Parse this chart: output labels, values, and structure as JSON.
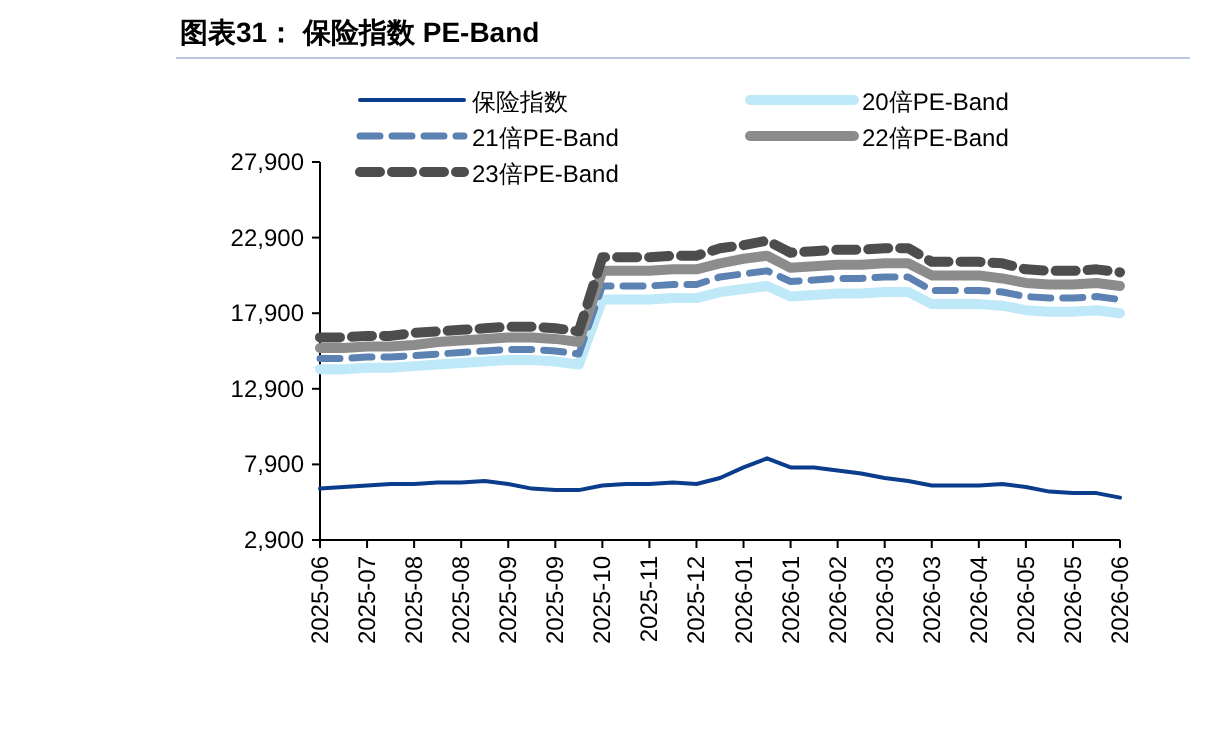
{
  "chart_data": {
    "type": "line",
    "title": "图表31： 保险指数 PE-Band",
    "legend": "top",
    "grid": false,
    "ylim": [
      2900,
      27900
    ],
    "yticks": [
      {
        "value": 2900,
        "label": "2,900"
      },
      {
        "value": 7900,
        "label": "7,900"
      },
      {
        "value": 12900,
        "label": "12,900"
      },
      {
        "value": 17900,
        "label": "17,900"
      },
      {
        "value": 22900,
        "label": "22,900"
      },
      {
        "value": 27900,
        "label": "27,900"
      }
    ],
    "categories": [
      "2025-06",
      null,
      "2025-07",
      null,
      "2025-08",
      null,
      "2025-08",
      null,
      "2025-09",
      null,
      "2025-09",
      null,
      "2025-10",
      null,
      "2025-11",
      null,
      "2025-12",
      null,
      "2026-01",
      null,
      "2026-01",
      null,
      "2026-02",
      null,
      "2026-03",
      null,
      "2026-03",
      null,
      "2026-04",
      null,
      "2026-05",
      null,
      "2026-05",
      null,
      "2026-06"
    ],
    "series": [
      {
        "name": "保险指数",
        "color": "#0b3d8c",
        "line_style": "solid",
        "values": [
          6300,
          6400,
          6500,
          6600,
          6600,
          6700,
          6700,
          6800,
          6600,
          6300,
          6200,
          6200,
          6500,
          6600,
          6600,
          6700,
          6600,
          7000,
          7700,
          8300,
          7700,
          7700,
          7500,
          7300,
          7000,
          6800,
          6500,
          6500,
          6500,
          6600,
          6400,
          6100,
          6000,
          6000,
          5700
        ]
      },
      {
        "name": "20倍PE-Band",
        "color": "#bfe8f8",
        "line_style": "solid",
        "values": [
          14200,
          14200,
          14300,
          14300,
          14400,
          14500,
          14600,
          14700,
          14800,
          14800,
          14700,
          14500,
          18800,
          18800,
          18800,
          18900,
          18900,
          19300,
          19500,
          19700,
          19000,
          19100,
          19200,
          19200,
          19300,
          19300,
          18500,
          18500,
          18500,
          18400,
          18100,
          18000,
          18000,
          18100,
          17900
        ]
      },
      {
        "name": "21倍PE-Band",
        "color": "#5b82b3",
        "line_style": "dashed",
        "values": [
          14900,
          14900,
          15000,
          15000,
          15100,
          15200,
          15300,
          15400,
          15500,
          15500,
          15400,
          15200,
          19700,
          19700,
          19700,
          19800,
          19800,
          20300,
          20500,
          20700,
          20000,
          20100,
          20200,
          20200,
          20300,
          20300,
          19400,
          19400,
          19400,
          19300,
          19000,
          18900,
          18900,
          19000,
          18800
        ]
      },
      {
        "name": "22倍PE-Band",
        "color": "#8c8c8c",
        "line_style": "solid",
        "values": [
          15600,
          15600,
          15700,
          15700,
          15800,
          16000,
          16100,
          16200,
          16300,
          16300,
          16200,
          16000,
          20700,
          20700,
          20700,
          20800,
          20800,
          21200,
          21500,
          21700,
          20900,
          21000,
          21100,
          21100,
          21200,
          21200,
          20400,
          20400,
          20400,
          20200,
          19900,
          19800,
          19800,
          19900,
          19700
        ]
      },
      {
        "name": "23倍PE-Band",
        "color": "#4d4d4d",
        "line_style": "dashed",
        "values": [
          16300,
          16300,
          16400,
          16400,
          16600,
          16700,
          16800,
          16900,
          17000,
          17000,
          16900,
          16700,
          21600,
          21600,
          21600,
          21700,
          21700,
          22200,
          22400,
          22700,
          21900,
          22000,
          22100,
          22100,
          22200,
          22200,
          21300,
          21300,
          21300,
          21200,
          20800,
          20700,
          20700,
          20800,
          20600
        ]
      }
    ]
  }
}
